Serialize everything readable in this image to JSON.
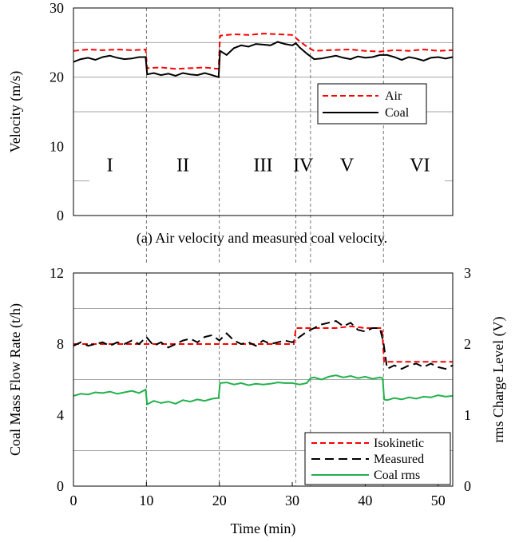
{
  "chart_data": [
    {
      "type": "line",
      "caption": "(a) Air velocity and measured coal velocity.",
      "ylabel": "Velocity (m/s)",
      "xlim": [
        0,
        52
      ],
      "ylim": [
        0,
        30
      ],
      "yticks": [
        0,
        10,
        20,
        30
      ],
      "grid_y": [
        5,
        15,
        20,
        25
      ],
      "phase_lines_x": [
        10,
        20,
        30.5,
        32.5,
        42.5
      ],
      "phase_labels": [
        {
          "text": "I",
          "x": 5
        },
        {
          "text": "II",
          "x": 15
        },
        {
          "text": "III",
          "x": 26
        },
        {
          "text": "IV",
          "x": 31.5
        },
        {
          "text": "V",
          "x": 37.5
        },
        {
          "text": "VI",
          "x": 47.5
        }
      ],
      "legend_position": "right",
      "series": [
        {
          "name": "Air",
          "color": "#ff0000",
          "dash": "dashed",
          "x": [
            0,
            2,
            4,
            6,
            8,
            9.9,
            10.1,
            12,
            14,
            16,
            18,
            19.9,
            20.1,
            22,
            24,
            26,
            28,
            30,
            31,
            32,
            33,
            35,
            38,
            40,
            42,
            44,
            46,
            48,
            50,
            52
          ],
          "y": [
            23.8,
            24.0,
            23.9,
            24.0,
            23.9,
            24.0,
            21.3,
            21.4,
            21.2,
            21.3,
            21.4,
            21.2,
            26.0,
            26.2,
            26.1,
            26.3,
            26.2,
            26.1,
            25.2,
            24.4,
            23.8,
            23.9,
            24.0,
            23.8,
            23.7,
            23.9,
            23.8,
            24.0,
            23.8,
            23.9
          ]
        },
        {
          "name": "Coal",
          "color": "#000000",
          "dash": "solid",
          "x": [
            0,
            1,
            2,
            3,
            4,
            5,
            6,
            7,
            8,
            9,
            9.9,
            10.1,
            11,
            12,
            13,
            14,
            15,
            16,
            17,
            18,
            19,
            19.9,
            20.1,
            21,
            22,
            23,
            24,
            25,
            26,
            27,
            28,
            29,
            30,
            30.5,
            31,
            32,
            33,
            34,
            35,
            36,
            37,
            38,
            39,
            40,
            41,
            42,
            43,
            44,
            45,
            46,
            47,
            48,
            49,
            50,
            51,
            52
          ],
          "y": [
            22.2,
            22.6,
            22.8,
            22.5,
            22.9,
            23.1,
            22.8,
            22.6,
            22.7,
            22.9,
            22.9,
            20.4,
            20.6,
            20.3,
            20.5,
            20.2,
            20.6,
            20.4,
            20.3,
            20.6,
            20.3,
            20.0,
            23.8,
            23.2,
            24.2,
            24.6,
            24.4,
            24.8,
            24.7,
            24.6,
            25.1,
            24.8,
            24.6,
            24.9,
            24.3,
            23.4,
            22.6,
            22.7,
            22.9,
            23.1,
            22.8,
            22.6,
            23.0,
            22.8,
            22.9,
            23.2,
            23.2,
            22.9,
            22.5,
            22.9,
            22.7,
            22.4,
            22.8,
            22.9,
            22.7,
            22.9
          ]
        }
      ]
    },
    {
      "type": "line",
      "xlabel": "Time (min)",
      "ylabel": "Coal Mass Flow Rate (t/h)",
      "y2label": "rms Charge Level (V)",
      "xlim": [
        0,
        52
      ],
      "xticks": [
        0,
        10,
        20,
        30,
        40,
        50
      ],
      "ylim": [
        0,
        12
      ],
      "yticks": [
        0,
        4,
        8,
        12
      ],
      "y2lim": [
        0,
        3
      ],
      "y2ticks": [
        0,
        1,
        2,
        3
      ],
      "grid_y": [
        2,
        6,
        10
      ],
      "phase_lines_x": [
        10,
        20,
        30.5,
        32.5,
        42.5
      ],
      "legend_position": "bottom-right",
      "series": [
        {
          "name": "Isokinetic",
          "color": "#ff0000",
          "dash": "dashed",
          "axis": "left",
          "x": [
            0,
            10,
            20,
            30.2,
            30.5,
            32,
            34,
            36,
            38,
            40,
            42.3,
            42.6,
            44,
            46,
            48,
            50,
            52
          ],
          "y": [
            8.0,
            8.0,
            8.0,
            8.0,
            8.9,
            8.9,
            8.9,
            8.9,
            9.0,
            8.9,
            8.9,
            7.0,
            7.0,
            7.0,
            7.0,
            7.0,
            7.0
          ]
        },
        {
          "name": "Measured",
          "color": "#000000",
          "dash": "longdash",
          "axis": "left",
          "x": [
            0,
            1,
            2,
            3,
            4,
            5,
            6,
            7,
            8,
            9,
            10,
            11,
            12,
            13,
            14,
            15,
            16,
            17,
            18,
            19,
            20,
            21,
            22,
            23,
            24,
            25,
            26,
            27,
            28,
            29,
            30,
            31,
            32,
            33,
            34,
            35,
            36,
            37,
            38,
            39,
            40,
            41,
            42,
            42.5,
            43,
            44,
            45,
            46,
            47,
            48,
            49,
            50,
            51,
            52
          ],
          "y": [
            7.9,
            8.1,
            7.9,
            8.0,
            8.1,
            7.9,
            8.1,
            8.0,
            8.2,
            8.0,
            8.4,
            7.9,
            8.1,
            7.8,
            8.0,
            8.2,
            8.3,
            8.1,
            8.4,
            8.5,
            8.2,
            8.6,
            8.2,
            8.0,
            8.1,
            7.9,
            8.2,
            8.0,
            8.1,
            8.2,
            8.1,
            8.4,
            8.7,
            8.9,
            9.1,
            9.2,
            9.3,
            9.0,
            9.2,
            8.8,
            8.7,
            8.9,
            8.9,
            8.1,
            6.6,
            6.8,
            6.6,
            6.8,
            6.9,
            6.7,
            6.9,
            6.7,
            6.6,
            6.8
          ]
        },
        {
          "name": "Coal rms",
          "color": "#22b14c",
          "dash": "solid",
          "axis": "right",
          "x": [
            0,
            1,
            2,
            3,
            4,
            5,
            6,
            7,
            8,
            9,
            9.9,
            10.1,
            11,
            12,
            13,
            14,
            15,
            16,
            17,
            18,
            19,
            19.9,
            20.1,
            21,
            22,
            23,
            24,
            25,
            26,
            27,
            28,
            29,
            30,
            31,
            32,
            32.5,
            33,
            34,
            35,
            36,
            37,
            38,
            39,
            40,
            41,
            42,
            42.4,
            42.6,
            43,
            44,
            45,
            46,
            47,
            48,
            49,
            50,
            51,
            52
          ],
          "y": [
            1.27,
            1.3,
            1.29,
            1.32,
            1.31,
            1.33,
            1.3,
            1.32,
            1.34,
            1.31,
            1.36,
            1.15,
            1.2,
            1.17,
            1.19,
            1.16,
            1.21,
            1.19,
            1.22,
            1.2,
            1.23,
            1.24,
            1.45,
            1.46,
            1.43,
            1.45,
            1.42,
            1.44,
            1.43,
            1.44,
            1.46,
            1.45,
            1.45,
            1.43,
            1.45,
            1.52,
            1.53,
            1.5,
            1.54,
            1.56,
            1.53,
            1.55,
            1.52,
            1.54,
            1.51,
            1.53,
            1.52,
            1.22,
            1.21,
            1.24,
            1.22,
            1.25,
            1.23,
            1.26,
            1.25,
            1.28,
            1.26,
            1.27
          ]
        }
      ]
    }
  ]
}
